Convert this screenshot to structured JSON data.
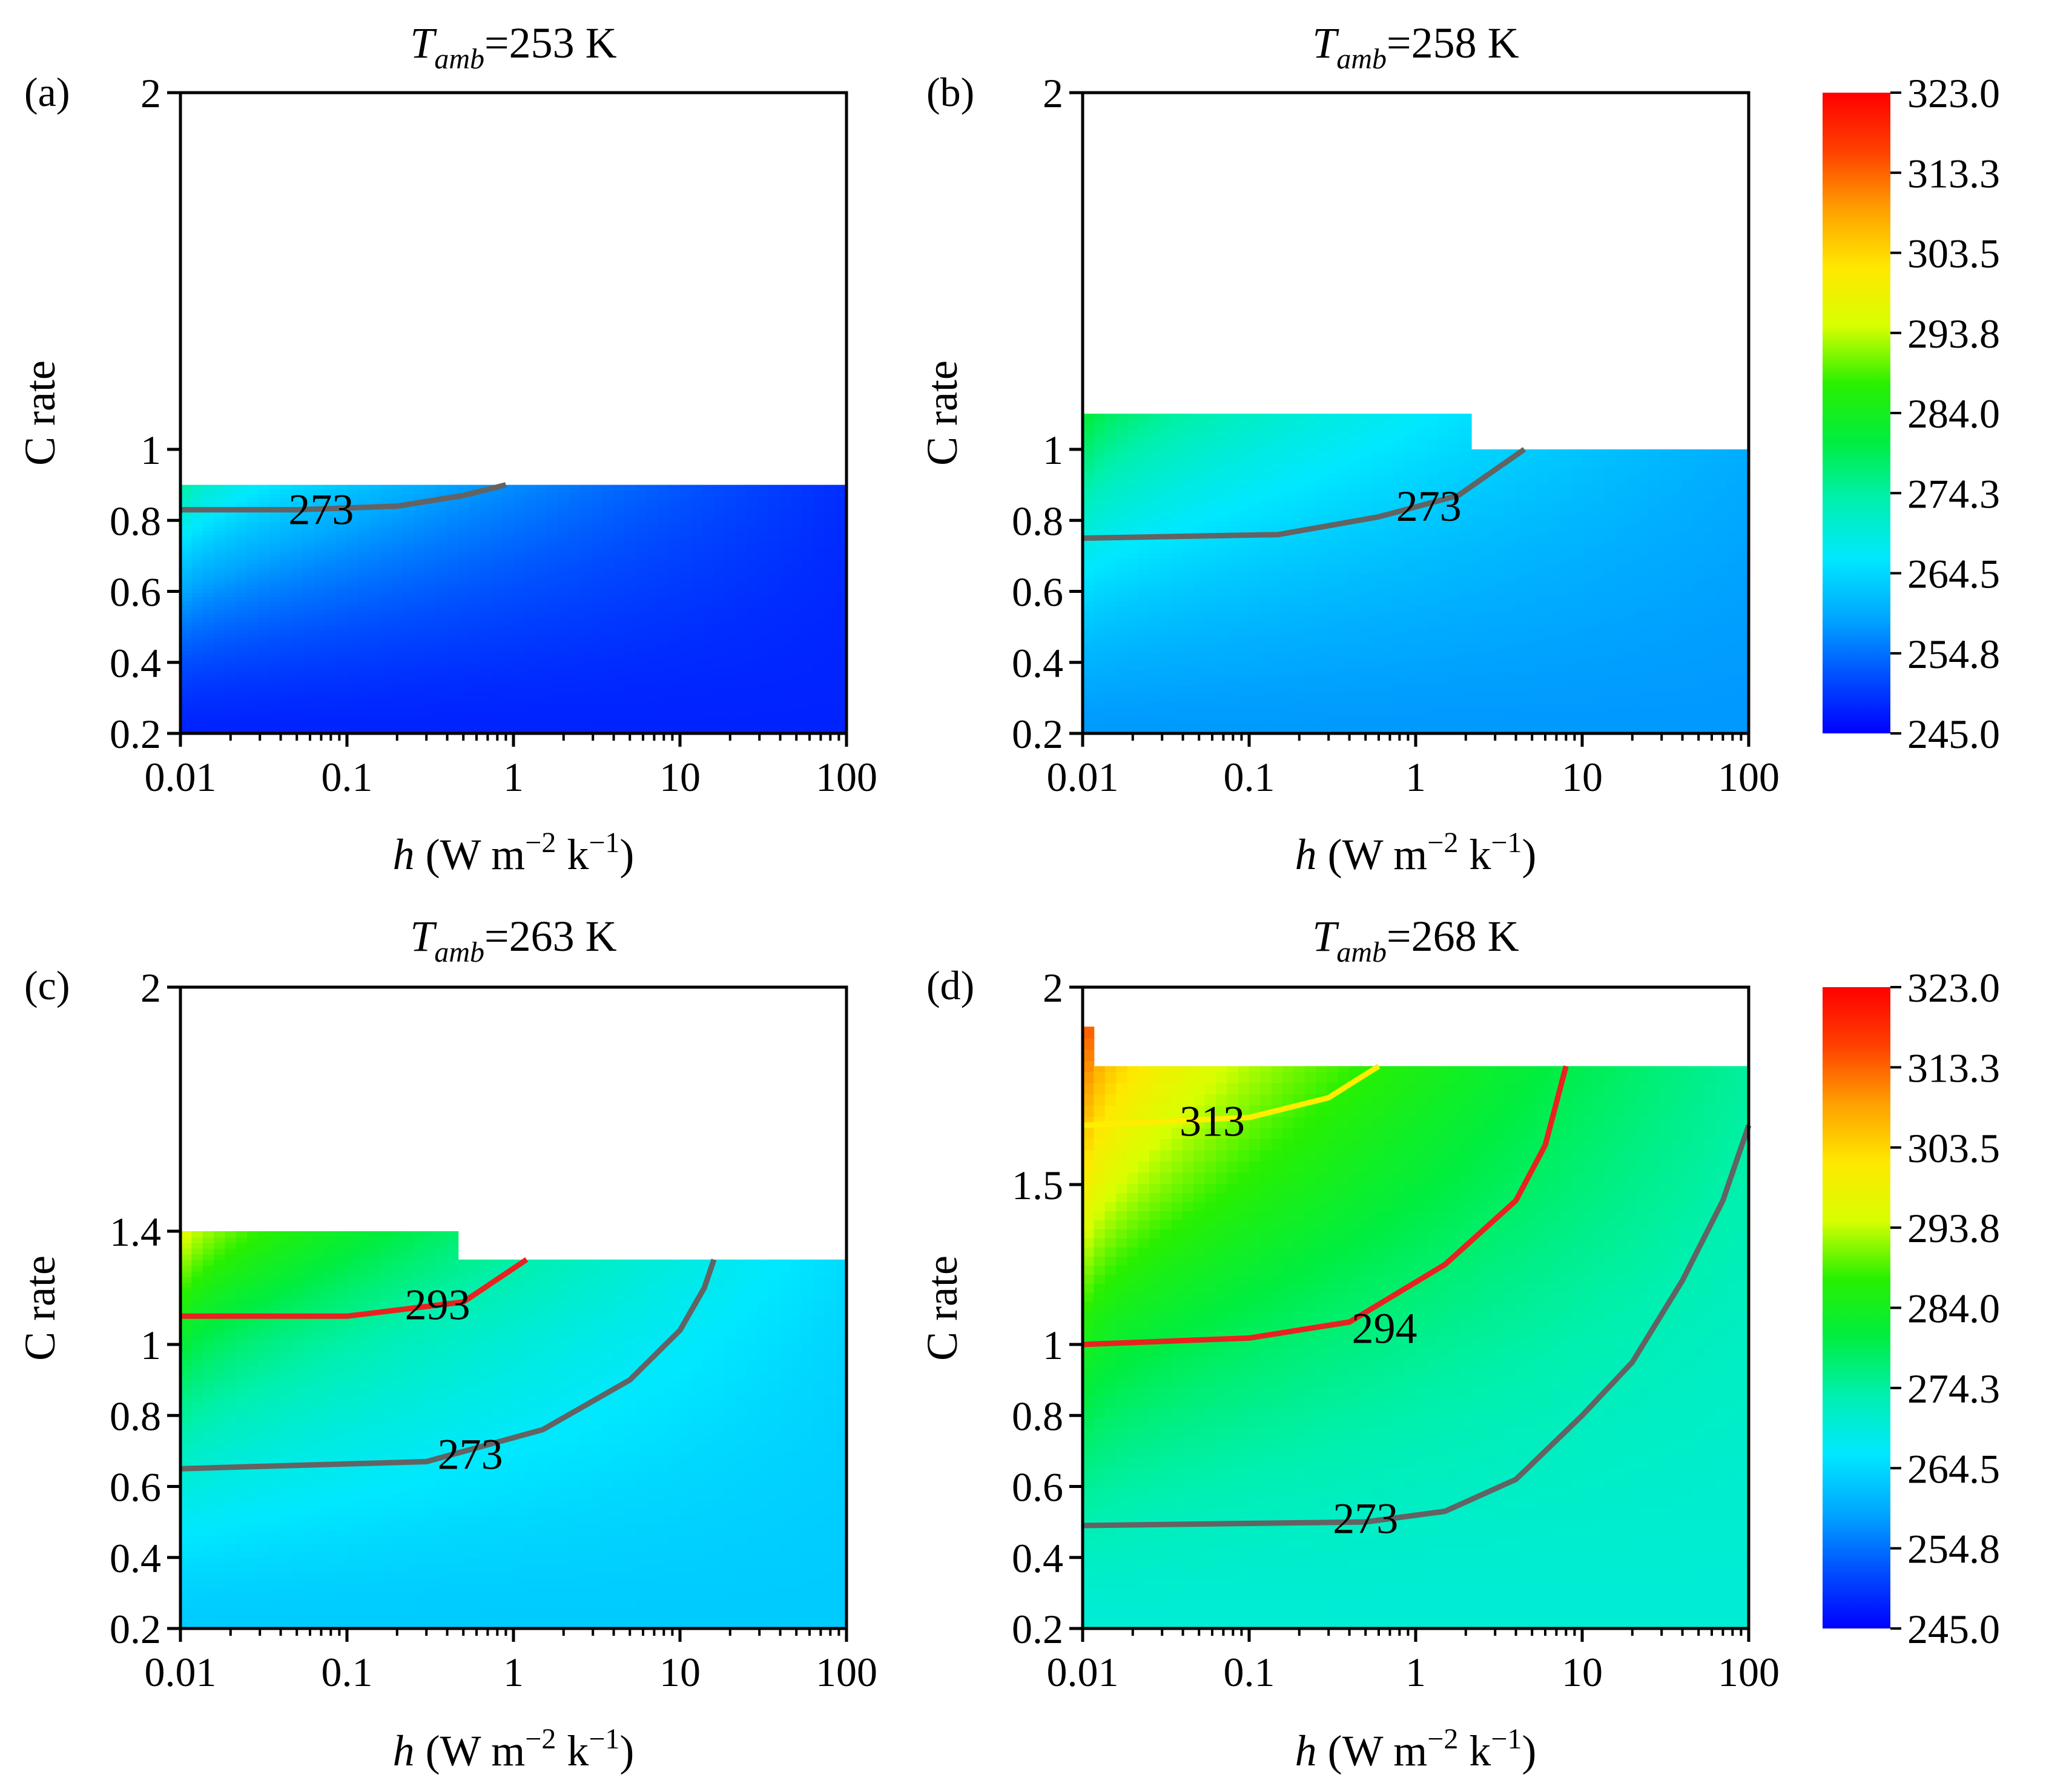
{
  "chart_data": [
    {
      "type": "heatmap",
      "panel_label": "(a)",
      "title_var": "T",
      "title_sub": "amb",
      "title_value": "=253 K",
      "xlabel_var": "h",
      "xlabel_rest": " (W m",
      "xlabel_exp1": "−2",
      "xlabel_mid": " k",
      "xlabel_exp2": "−1",
      "xlabel_end": ")",
      "ylabel": "C rate",
      "xscale": "log",
      "xlim": [
        0.01,
        100
      ],
      "ylim": [
        0.2,
        2
      ],
      "xticks": [
        0.01,
        0.1,
        1,
        10,
        100
      ],
      "xtick_labels": [
        "0.01",
        "0.1",
        "1",
        "10",
        "100"
      ],
      "yticks": [
        0.2,
        0.4,
        0.6,
        0.8,
        1,
        2
      ],
      "ytick_labels": [
        "0.2",
        "0.4",
        "0.6",
        "0.8",
        "1",
        "2"
      ],
      "region_boundary": [
        [
          0.01,
          0.9
        ],
        [
          100,
          0.9
        ]
      ],
      "field": {
        "t_min": 248,
        "h_decay": 0.5,
        "t_max_at_low_h": 276,
        "t_max_at_high_h": 249
      },
      "contours": [
        {
          "level": 273,
          "label": "273",
          "color": "#636363",
          "points": [
            [
              0.01,
              0.83
            ],
            [
              0.05,
              0.83
            ],
            [
              0.2,
              0.84
            ],
            [
              0.5,
              0.87
            ],
            [
              0.9,
              0.9
            ]
          ],
          "label_at": [
            0.07,
            0.83
          ]
        }
      ]
    },
    {
      "type": "heatmap",
      "panel_label": "(b)",
      "title_var": "T",
      "title_sub": "amb",
      "title_value": "=258 K",
      "xlabel_var": "h",
      "xlabel_rest": " (W m",
      "xlabel_exp1": "−2",
      "xlabel_mid": " k",
      "xlabel_exp2": "−1",
      "xlabel_end": ")",
      "ylabel": "C rate",
      "xscale": "log",
      "xlim": [
        0.01,
        100
      ],
      "ylim": [
        0.2,
        2
      ],
      "xticks": [
        0.01,
        0.1,
        1,
        10,
        100
      ],
      "xtick_labels": [
        "0.01",
        "0.1",
        "1",
        "10",
        "100"
      ],
      "yticks": [
        0.2,
        0.4,
        0.6,
        0.8,
        1,
        2
      ],
      "ytick_labels": [
        "0.2",
        "0.4",
        "0.6",
        "0.8",
        "1",
        "2"
      ],
      "region_boundary": [
        [
          0.01,
          1.1
        ],
        [
          2,
          1.1
        ],
        [
          2,
          1.0
        ],
        [
          100,
          1.0
        ]
      ],
      "field": {
        "t_min": 258,
        "h_decay": 0.5,
        "t_max_at_low_h": 283,
        "t_max_at_high_h": 260
      },
      "contours": [
        {
          "level": 273,
          "label": "273",
          "color": "#636363",
          "points": [
            [
              0.01,
              0.75
            ],
            [
              0.15,
              0.76
            ],
            [
              0.6,
              0.81
            ],
            [
              1.8,
              0.87
            ],
            [
              4.5,
              1.0
            ]
          ],
          "label_at": [
            1.2,
            0.84
          ]
        }
      ]
    },
    {
      "type": "heatmap",
      "panel_label": "(c)",
      "title_var": "T",
      "title_sub": "amb",
      "title_value": "=263 K",
      "xlabel_var": "h",
      "xlabel_rest": " (W m",
      "xlabel_exp1": "−2",
      "xlabel_mid": " k",
      "xlabel_exp2": "−1",
      "xlabel_end": ")",
      "ylabel": "C rate",
      "xscale": "log",
      "xlim": [
        0.01,
        100
      ],
      "ylim": [
        0.2,
        2
      ],
      "xticks": [
        0.01,
        0.1,
        1,
        10,
        100
      ],
      "xtick_labels": [
        "0.01",
        "0.1",
        "1",
        "10",
        "100"
      ],
      "yticks": [
        0.2,
        0.4,
        0.6,
        0.8,
        1,
        1.4,
        2
      ],
      "ytick_labels": [
        "0.2",
        "0.4",
        "0.6",
        "0.8",
        "1",
        "1.4",
        "2"
      ],
      "region_boundary": [
        [
          0.01,
          1.4
        ],
        [
          0.5,
          1.4
        ],
        [
          0.5,
          1.3
        ],
        [
          100,
          1.3
        ]
      ],
      "field": {
        "t_min": 263,
        "h_decay": 0.55,
        "t_max_at_low_h": 298,
        "t_max_at_high_h": 265
      },
      "contours": [
        {
          "level": 293,
          "label": "293",
          "color": "#e8231f",
          "points": [
            [
              0.01,
              1.1
            ],
            [
              0.1,
              1.1
            ],
            [
              0.5,
              1.15
            ],
            [
              1.2,
              1.3
            ]
          ],
          "label_at": [
            0.35,
            1.14
          ]
        },
        {
          "level": 273,
          "label": "273",
          "color": "#636363",
          "points": [
            [
              0.01,
              0.65
            ],
            [
              0.3,
              0.67
            ],
            [
              1.5,
              0.76
            ],
            [
              5,
              0.9
            ],
            [
              10,
              1.05
            ],
            [
              14,
              1.2
            ],
            [
              16,
              1.3
            ]
          ],
          "label_at": [
            0.55,
            0.69
          ]
        }
      ]
    },
    {
      "type": "heatmap",
      "panel_label": "(d)",
      "title_var": "T",
      "title_sub": "amb",
      "title_value": "=268 K",
      "xlabel_var": "h",
      "xlabel_rest": " (W m",
      "xlabel_exp1": "−2",
      "xlabel_mid": " k",
      "xlabel_exp2": "−1",
      "xlabel_end": ")",
      "ylabel": "C rate",
      "xscale": "log",
      "xlim": [
        0.01,
        100
      ],
      "ylim": [
        0.2,
        2
      ],
      "xticks": [
        0.01,
        0.1,
        1,
        10,
        100
      ],
      "xtick_labels": [
        "0.01",
        "0.1",
        "1",
        "10",
        "100"
      ],
      "yticks": [
        0.2,
        0.4,
        0.6,
        0.8,
        1,
        1.5,
        2
      ],
      "ytick_labels": [
        "0.2",
        "0.4",
        "0.6",
        "0.8",
        "1",
        "1.5",
        "2"
      ],
      "region_boundary": [
        [
          0.01,
          1.9
        ],
        [
          0.011,
          1.9
        ],
        [
          0.011,
          1.8
        ],
        [
          100,
          1.8
        ]
      ],
      "field": {
        "t_min": 270,
        "h_decay": 0.45,
        "t_max_at_low_h": 319,
        "t_max_at_high_h": 275
      },
      "contours": [
        {
          "level": 313,
          "label": "313",
          "color": "#ffee00",
          "points": [
            [
              0.01,
              1.65
            ],
            [
              0.1,
              1.67
            ],
            [
              0.3,
              1.72
            ],
            [
              0.6,
              1.8
            ]
          ],
          "label_at": [
            0.06,
            1.66
          ]
        },
        {
          "level": 294,
          "label": "294",
          "color": "#e8231f",
          "points": [
            [
              0.01,
              1.0
            ],
            [
              0.1,
              1.02
            ],
            [
              0.4,
              1.07
            ],
            [
              1.5,
              1.25
            ],
            [
              4,
              1.45
            ],
            [
              6,
              1.6
            ],
            [
              8,
              1.8
            ]
          ],
          "label_at": [
            0.65,
            1.05
          ]
        },
        {
          "level": 273,
          "label": "273",
          "color": "#636363",
          "points": [
            [
              0.01,
              0.49
            ],
            [
              0.5,
              0.5
            ],
            [
              1.5,
              0.53
            ],
            [
              4,
              0.62
            ],
            [
              10,
              0.8
            ],
            [
              20,
              0.95
            ],
            [
              40,
              1.2
            ],
            [
              70,
              1.45
            ],
            [
              100,
              1.65
            ]
          ],
          "label_at": [
            0.5,
            0.51
          ]
        }
      ]
    }
  ],
  "colorbar": {
    "min": 245.0,
    "max": 323.0,
    "tick_labels": [
      "323.0",
      "313.3",
      "303.5",
      "293.8",
      "284.0",
      "274.3",
      "264.5",
      "254.8",
      "245.0"
    ],
    "colors": [
      "#0000ff",
      "#0050ff",
      "#00a8ff",
      "#00e8ff",
      "#00f0b0",
      "#00ee40",
      "#28f000",
      "#d8ff00",
      "#ffe800",
      "#ffa000",
      "#ff4000",
      "#ff0000"
    ]
  }
}
